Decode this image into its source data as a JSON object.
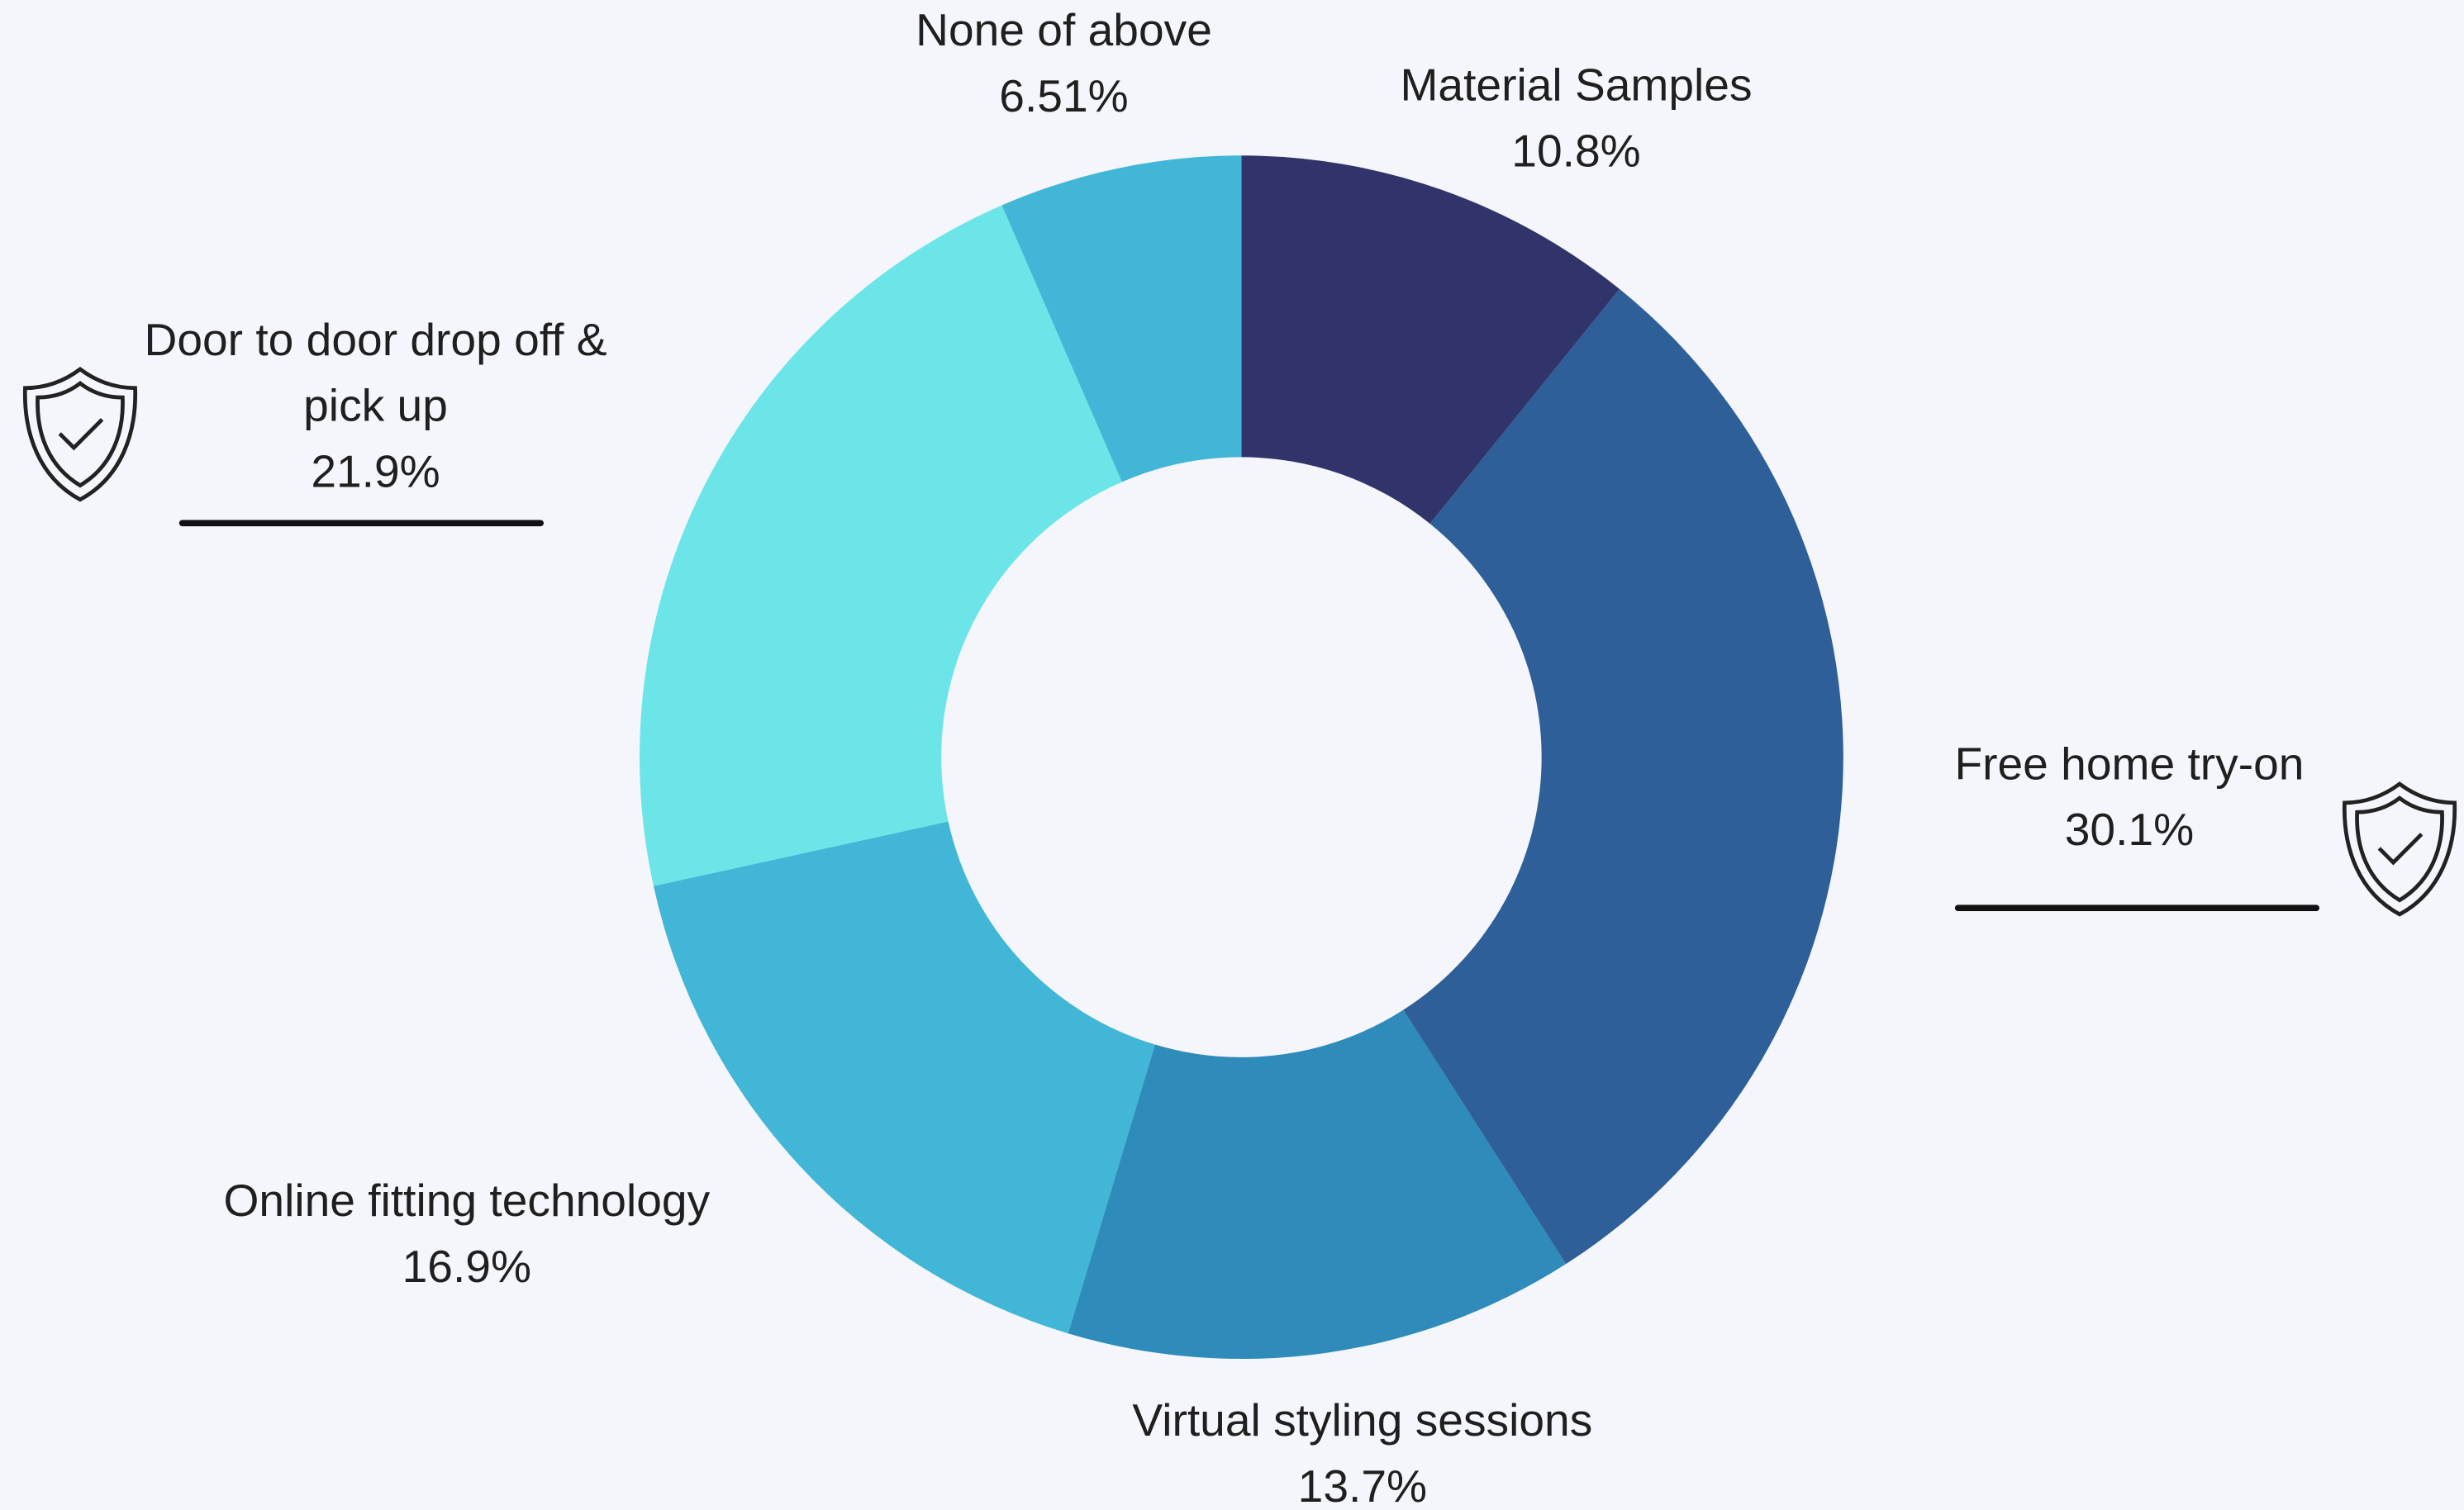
{
  "chart_data": {
    "type": "donut",
    "categories": [
      "Material Samples",
      "Free home try-on",
      "Virtual styling sessions",
      "Online fitting technology",
      "Door to door drop off & pick up",
      "None of above"
    ],
    "values": [
      10.8,
      30.1,
      13.7,
      16.9,
      21.9,
      6.51
    ],
    "value_labels": [
      "10.8%",
      "30.1%",
      "13.7%",
      "16.9%",
      "21.9%",
      "6.51%"
    ],
    "colors": [
      "#31346b",
      "#2e5f98",
      "#2e8bba",
      "#42b6d6",
      "#6ce5e9",
      "#42b6d6"
    ]
  }
}
